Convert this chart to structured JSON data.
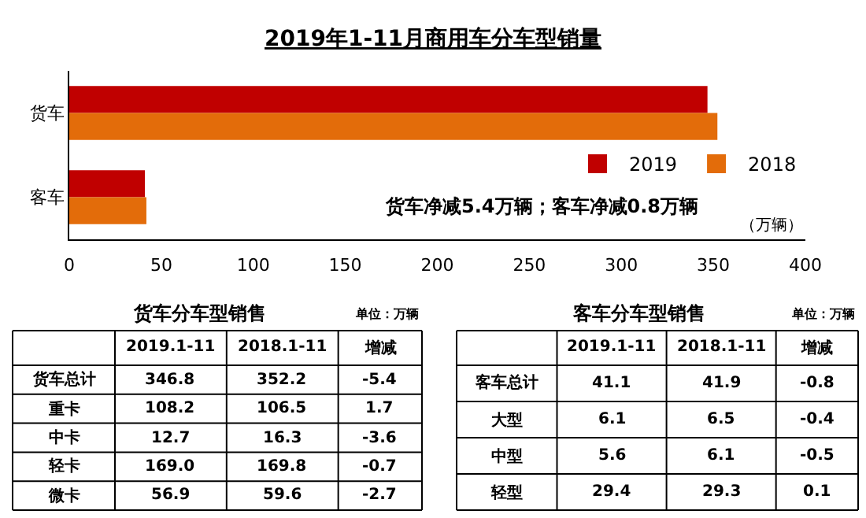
{
  "chart_data": [
    {
      "type": "bar",
      "orientation": "horizontal",
      "title": "2019年1-11月商用车分车型销量",
      "xlabel": "（万辆）",
      "categories": [
        "货车",
        "客车"
      ],
      "series": [
        {
          "name": "2019",
          "color": "#c00000",
          "values": [
            346.8,
            41.1
          ]
        },
        {
          "name": "2018",
          "color": "#e36c0a",
          "values": [
            352.2,
            41.9
          ]
        }
      ],
      "xlim": [
        0,
        400
      ],
      "xticks": [
        0,
        50,
        100,
        150,
        200,
        250,
        300,
        350,
        400
      ],
      "legend": "right",
      "annotations": [
        "货车净减5.4万辆；客车净减0.8万辆"
      ]
    },
    {
      "type": "other",
      "title": "货车分车型销售",
      "subtitle": "单位：万辆",
      "categories": [
        "2019.1-11",
        "2018.1-11",
        "增减"
      ],
      "y_categories": [
        "货车总计",
        "重卡",
        "中卡",
        "轻卡",
        "微卡"
      ],
      "cell_labels": [
        [
          "346.8",
          "352.2",
          "-5.4"
        ],
        [
          "108.2",
          "106.5",
          "1.7"
        ],
        [
          "12.7",
          "16.3",
          "-3.6"
        ],
        [
          "169.0",
          "169.8",
          "-0.7"
        ],
        [
          "56.9",
          "59.6",
          "-2.7"
        ]
      ]
    },
    {
      "type": "other",
      "title": "客车分车型销售",
      "subtitle": "单位：万辆",
      "categories": [
        "2019.1-11",
        "2018.1-11",
        "增减"
      ],
      "y_categories": [
        "客车总计",
        "大型",
        "中型",
        "轻型"
      ],
      "cell_labels": [
        [
          "41.1",
          "41.9",
          "-0.8"
        ],
        [
          "6.1",
          "6.5",
          "-0.4"
        ],
        [
          "5.6",
          "6.1",
          "-0.5"
        ],
        [
          "29.4",
          "29.3",
          "0.1"
        ]
      ]
    }
  ]
}
